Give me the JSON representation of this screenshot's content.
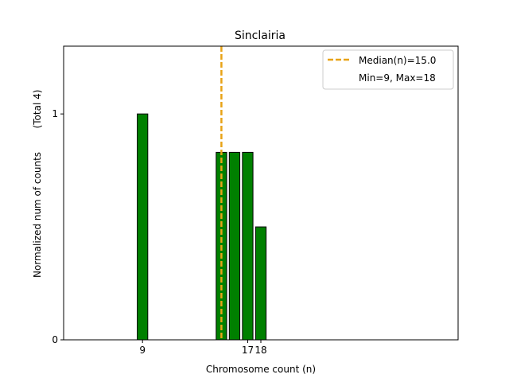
{
  "chart_data": {
    "type": "bar",
    "title": "Sinclairia",
    "xlabel": "Chromosome count (n)",
    "ylabel": "Normalized num of counts",
    "ylabel_note": "(Total 4)",
    "xlim": [
      3,
      33
    ],
    "ylim": [
      0,
      1.3
    ],
    "bars": [
      {
        "x": 9,
        "value": 1.0
      },
      {
        "x": 15,
        "value": 0.83
      },
      {
        "x": 16,
        "value": 0.83
      },
      {
        "x": 17,
        "value": 0.83
      },
      {
        "x": 18,
        "value": 0.5
      }
    ],
    "x_ticks": [
      {
        "value": 9,
        "label": "9"
      },
      {
        "value": 17,
        "label": "17"
      },
      {
        "value": 18,
        "label": "18"
      }
    ],
    "y_ticks": [
      {
        "value": 0,
        "label": "0"
      },
      {
        "value": 1,
        "label": "1"
      }
    ],
    "median": 15.0,
    "legend": {
      "position": "top-right",
      "median_label": "Median(n)=15.0",
      "minmax_label": "Min=9, Max=18"
    },
    "colors": {
      "bar_fill": "#008000",
      "bar_edge": "#000000",
      "median_line": "#E8A317"
    }
  }
}
